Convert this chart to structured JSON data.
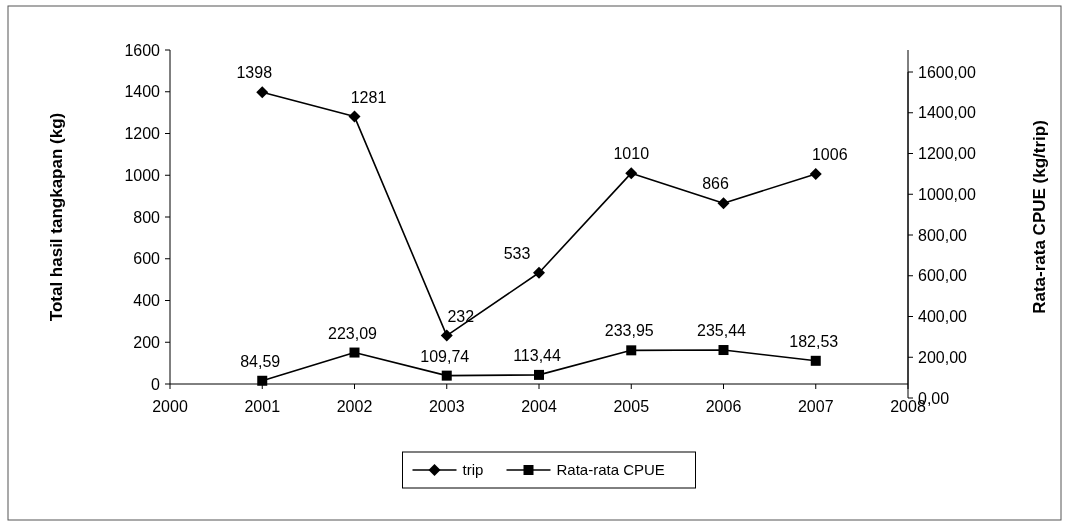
{
  "chart_data": {
    "type": "line",
    "ylabel": "Total hasil tangkapan (kg)",
    "y2label": "Rata-rata CPUE (kg/trip)",
    "x": [
      2001,
      2002,
      2003,
      2004,
      2005,
      2006,
      2007
    ],
    "xlim": [
      2000,
      2008
    ],
    "xticks": [
      2000,
      2001,
      2002,
      2003,
      2004,
      2005,
      2006,
      2007,
      2008
    ],
    "ylim": [
      0,
      1600
    ],
    "yticks": [
      0,
      200,
      400,
      600,
      800,
      1000,
      1200,
      1400,
      1600
    ],
    "y2lim": [
      0,
      1600
    ],
    "y2ticks": [
      {
        "value": 0,
        "label": "0,00"
      },
      {
        "value": 200,
        "label": "200,00"
      },
      {
        "value": 400,
        "label": "400,00"
      },
      {
        "value": 600,
        "label": "600,00"
      },
      {
        "value": 800,
        "label": "800,00"
      },
      {
        "value": 1000,
        "label": "1000,00"
      },
      {
        "value": 1200,
        "label": "1200,00"
      },
      {
        "value": 1400,
        "label": "1400,00"
      },
      {
        "value": 1600,
        "label": "1600,00"
      }
    ],
    "series": [
      {
        "name": "trip",
        "color": "#000000",
        "marker": "diamond",
        "values": [
          1398,
          1281,
          232,
          533,
          1010,
          866,
          1006
        ],
        "value_labels": [
          "1398",
          "1281",
          "232",
          "533",
          "1010",
          "866",
          "1006"
        ]
      },
      {
        "name": "Rata-rata CPUE",
        "color": "#000000",
        "marker": "square",
        "axis": "y2",
        "values": [
          84.59,
          223.09,
          109.74,
          113.44,
          233.95,
          235.44,
          182.53
        ],
        "value_labels": [
          "84,59",
          "223,09",
          "109,74",
          "113,44",
          "233,95",
          "235,44",
          "182,53"
        ]
      }
    ],
    "grid": false,
    "legend": "bottom",
    "line_style": "solid"
  }
}
